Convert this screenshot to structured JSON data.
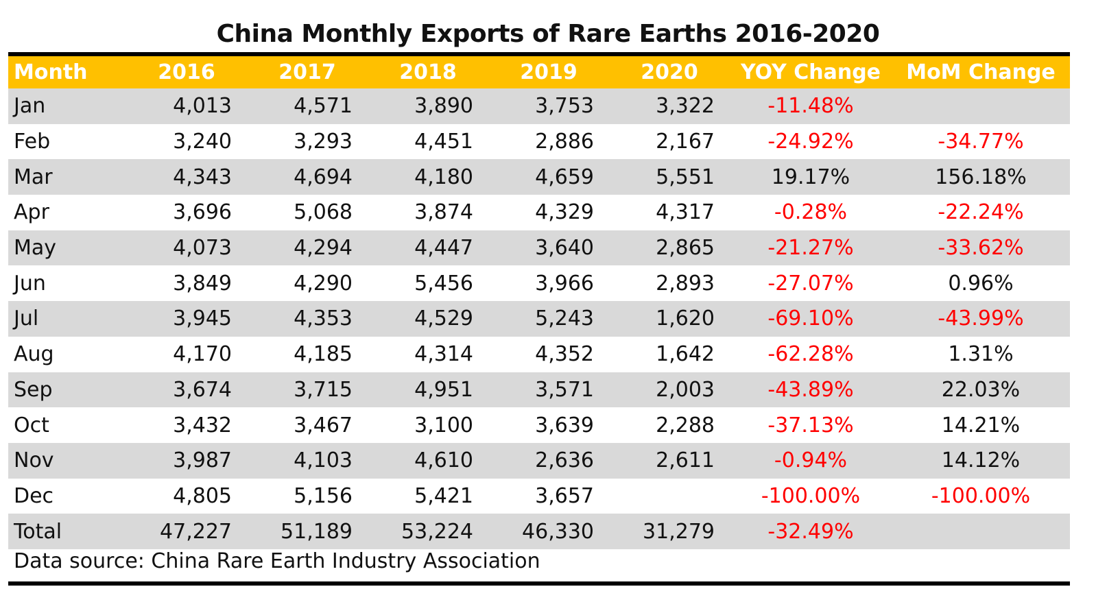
{
  "chart_data": {
    "type": "table",
    "title": "China Monthly Exports of Rare Earths 2016-2020",
    "columns": [
      "Month",
      "2016",
      "2017",
      "2018",
      "2019",
      "2020",
      "YOY Change",
      "MoM Change"
    ],
    "rows": [
      {
        "month": "Jan",
        "y2016": "4,013",
        "y2017": "4,571",
        "y2018": "3,890",
        "y2019": "3,753",
        "y2020": "3,322",
        "yoy": "-11.48%",
        "mom": ""
      },
      {
        "month": "Feb",
        "y2016": "3,240",
        "y2017": "3,293",
        "y2018": "4,451",
        "y2019": "2,886",
        "y2020": "2,167",
        "yoy": "-24.92%",
        "mom": "-34.77%"
      },
      {
        "month": "Mar",
        "y2016": "4,343",
        "y2017": "4,694",
        "y2018": "4,180",
        "y2019": "4,659",
        "y2020": "5,551",
        "yoy": "19.17%",
        "mom": "156.18%"
      },
      {
        "month": "Apr",
        "y2016": "3,696",
        "y2017": "5,068",
        "y2018": "3,874",
        "y2019": "4,329",
        "y2020": "4,317",
        "yoy": "-0.28%",
        "mom": "-22.24%"
      },
      {
        "month": "May",
        "y2016": "4,073",
        "y2017": "4,294",
        "y2018": "4,447",
        "y2019": "3,640",
        "y2020": "2,865",
        "yoy": "-21.27%",
        "mom": "-33.62%"
      },
      {
        "month": "Jun",
        "y2016": "3,849",
        "y2017": "4,290",
        "y2018": "5,456",
        "y2019": "3,966",
        "y2020": "2,893",
        "yoy": "-27.07%",
        "mom": "0.96%"
      },
      {
        "month": "Jul",
        "y2016": "3,945",
        "y2017": "4,353",
        "y2018": "4,529",
        "y2019": "5,243",
        "y2020": "1,620",
        "yoy": "-69.10%",
        "mom": "-43.99%"
      },
      {
        "month": "Aug",
        "y2016": "4,170",
        "y2017": "4,185",
        "y2018": "4,314",
        "y2019": "4,352",
        "y2020": "1,642",
        "yoy": "-62.28%",
        "mom": "1.31%"
      },
      {
        "month": "Sep",
        "y2016": "3,674",
        "y2017": "3,715",
        "y2018": "4,951",
        "y2019": "3,571",
        "y2020": "2,003",
        "yoy": "-43.89%",
        "mom": "22.03%"
      },
      {
        "month": "Oct",
        "y2016": "3,432",
        "y2017": "3,467",
        "y2018": "3,100",
        "y2019": "3,639",
        "y2020": "2,288",
        "yoy": "-37.13%",
        "mom": "14.21%"
      },
      {
        "month": "Nov",
        "y2016": "3,987",
        "y2017": "4,103",
        "y2018": "4,610",
        "y2019": "2,636",
        "y2020": "2,611",
        "yoy": "-0.94%",
        "mom": "14.12%"
      },
      {
        "month": "Dec",
        "y2016": "4,805",
        "y2017": "5,156",
        "y2018": "5,421",
        "y2019": "3,657",
        "y2020": "",
        "yoy": "-100.00%",
        "mom": "-100.00%"
      },
      {
        "month": "Total",
        "y2016": "47,227",
        "y2017": "51,189",
        "y2018": "53,224",
        "y2019": "46,330",
        "y2020": "31,279",
        "yoy": "-32.49%",
        "mom": ""
      }
    ],
    "source": "Data source: China Rare Earth Industry Association"
  },
  "colors": {
    "header_bg": "#ffc000",
    "header_text": "#ffffff",
    "shade_row": "#d9d9d9",
    "negative": "#ff0000",
    "rule": "#000000"
  }
}
